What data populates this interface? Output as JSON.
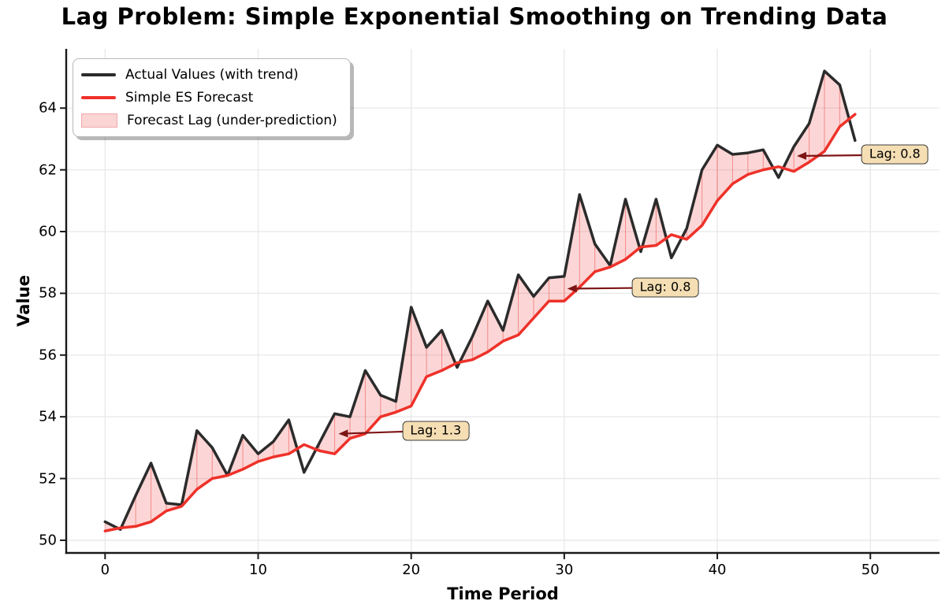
{
  "title": "Lag Problem: Simple Exponential Smoothing on Trending Data",
  "axes": {
    "xlabel": "Time Period",
    "ylabel": "Value",
    "x_ticks": [
      0,
      10,
      20,
      30,
      40,
      50
    ],
    "y_ticks": [
      50,
      52,
      54,
      56,
      58,
      60,
      62,
      64
    ],
    "x_range": [
      -2.54,
      54.52
    ],
    "y_range": [
      49.59,
      65.92
    ],
    "grid": true
  },
  "legend": {
    "position": "upper-left",
    "items": [
      {
        "label": "Actual Values (with trend)",
        "swatch": "line",
        "color": "#2b2b2b"
      },
      {
        "label": "Simple ES Forecast",
        "swatch": "line",
        "color": "#ee3129"
      },
      {
        "label": "Forecast Lag (under-prediction)",
        "swatch": "patch",
        "color": "#fbd4d4",
        "edge_color": "#f3aaaa"
      }
    ]
  },
  "chart_data": {
    "type": "line",
    "title": "Lag Problem: Simple Exponential Smoothing on Trending Data",
    "xlabel": "Time Period",
    "ylabel": "Value",
    "xlim": [
      -2.54,
      54.52
    ],
    "ylim": [
      49.59,
      65.92
    ],
    "grid": true,
    "legend_position": "upper-left",
    "x": [
      0,
      1,
      2,
      3,
      4,
      5,
      6,
      7,
      8,
      9,
      10,
      11,
      12,
      13,
      14,
      15,
      16,
      17,
      18,
      19,
      20,
      21,
      22,
      23,
      24,
      25,
      26,
      27,
      28,
      29,
      30,
      31,
      32,
      33,
      34,
      35,
      36,
      37,
      38,
      39,
      40,
      41,
      42,
      43,
      44,
      45,
      46,
      47,
      48,
      49
    ],
    "series": [
      {
        "name": "Actual Values (with trend)",
        "color": "#2b2b2b",
        "line_width": 3.5,
        "values": [
          50.6,
          50.35,
          51.45,
          52.5,
          51.2,
          51.15,
          53.55,
          53.0,
          52.1,
          53.4,
          52.8,
          53.2,
          53.9,
          52.2,
          53.15,
          54.1,
          54.0,
          55.5,
          54.7,
          54.5,
          57.55,
          56.25,
          56.8,
          55.6,
          56.6,
          57.75,
          56.8,
          58.6,
          57.9,
          58.5,
          58.55,
          61.2,
          59.6,
          58.9,
          61.05,
          59.35,
          61.05,
          59.15,
          60.1,
          62.0,
          62.8,
          62.5,
          62.55,
          62.65,
          61.75,
          62.75,
          63.5,
          65.2,
          64.75,
          62.95
        ]
      },
      {
        "name": "Simple ES Forecast",
        "color": "#ee3129",
        "line_width": 3.5,
        "values": [
          50.3,
          50.4,
          50.45,
          50.6,
          50.95,
          51.1,
          51.65,
          52.0,
          52.1,
          52.3,
          52.55,
          52.7,
          52.8,
          53.1,
          52.9,
          52.8,
          53.3,
          53.45,
          54.0,
          54.15,
          54.35,
          55.3,
          55.5,
          55.75,
          55.85,
          56.1,
          56.45,
          56.65,
          57.2,
          57.75,
          57.75,
          58.2,
          58.7,
          58.85,
          59.1,
          59.5,
          59.55,
          59.9,
          59.75,
          60.2,
          61.0,
          61.55,
          61.85,
          62.0,
          62.1,
          61.95,
          62.25,
          62.6,
          63.4,
          63.8
        ]
      }
    ],
    "fill_between": {
      "label": "Forecast Lag (under-prediction)",
      "condition": "actual > forecast",
      "fill_color": "rgba(240,70,70,0.22)",
      "edge_color": "rgba(240,70,70,0.30)"
    },
    "annotations": [
      {
        "label": "Lag: 1.3",
        "arrow_tip": [
          15.25,
          53.45
        ],
        "box_center": [
          21.6,
          53.55
        ]
      },
      {
        "label": "Lag: 0.8",
        "arrow_tip": [
          30.2,
          58.15
        ],
        "box_center": [
          36.6,
          58.2
        ]
      },
      {
        "label": "Lag: 0.8",
        "arrow_tip": [
          45.2,
          62.45
        ],
        "box_center": [
          51.6,
          62.5
        ]
      }
    ],
    "annotation_style": {
      "box_fill": "#f5deb3",
      "box_edge": "#3d3d3d",
      "arrow_color": "#7d1515"
    }
  },
  "style_colors": {
    "grid": "#e8e8e8",
    "spine": "#1a1a1a",
    "background": "#ffffff"
  }
}
